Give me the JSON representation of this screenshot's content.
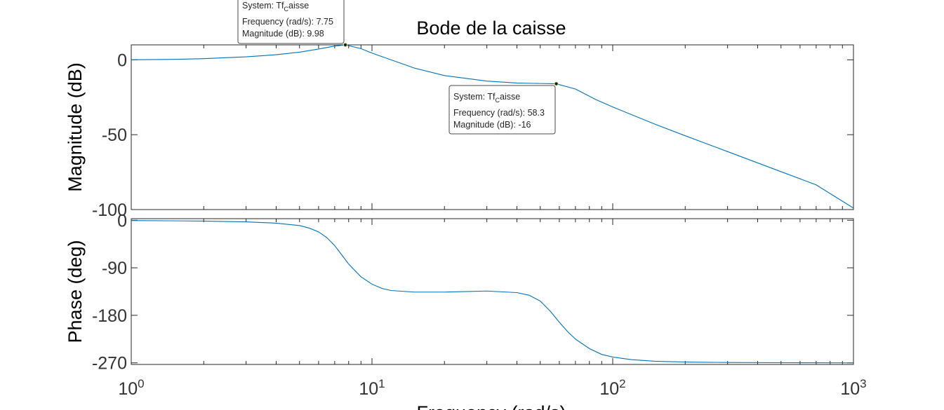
{
  "chart_data": {
    "type": "line",
    "title": "Bode de la caisse",
    "xlabel": "Frequency  (rad/s)",
    "x_scale": "log",
    "x_range": [
      1,
      1000
    ],
    "x_ticks": [
      {
        "base": "10",
        "exp": "0"
      },
      {
        "base": "10",
        "exp": "1"
      },
      {
        "base": "10",
        "exp": "2"
      },
      {
        "base": "10",
        "exp": "3"
      }
    ],
    "grid": false,
    "subplots": [
      {
        "id": "magnitude",
        "ylabel": "Magnitude (dB)",
        "ylim": [
          -100,
          10
        ],
        "yticks": [
          "0",
          "-50",
          "-100"
        ],
        "ytick_values": [
          0,
          -50,
          -100
        ],
        "series": [
          {
            "color": "#0072bd",
            "x": [
              1,
              1.5,
              2,
              3,
              4,
              5,
              6,
              7,
              7.75,
              9,
              10,
              12,
              15,
              20,
              30,
              40,
              50,
              58.3,
              70,
              85,
              100,
              150,
              200,
              300,
              500,
              700,
              1000
            ],
            "y": [
              0,
              0.3,
              0.8,
              2,
              3.4,
              5.1,
              7.2,
              9.2,
              9.98,
              7.5,
              4.5,
              0,
              -5.5,
              -10.5,
              -14.2,
              -15.5,
              -15.8,
              -16,
              -19.5,
              -26.5,
              -31.5,
              -43,
              -50.7,
              -61.3,
              -74.7,
              -83.5,
              -99
            ]
          }
        ]
      },
      {
        "id": "phase",
        "ylabel": "Phase (deg)",
        "ylim": [
          -273,
          3
        ],
        "yticks": [
          "0",
          "-90",
          "-180",
          "-270"
        ],
        "ytick_values": [
          0,
          -90,
          -180,
          -270
        ],
        "series": [
          {
            "color": "#0072bd",
            "x": [
              1,
              2,
              3,
              4,
              5,
              5.5,
              6,
              6.5,
              7,
              7.5,
              8,
              9,
              10,
              11,
              12,
              15,
              20,
              30,
              40,
              45,
              50,
              55,
              60,
              65,
              70,
              80,
              90,
              100,
              120,
              150,
              200,
              300,
              500,
              1000
            ],
            "y": [
              -0.5,
              -1.5,
              -3,
              -5.5,
              -10,
              -15,
              -22,
              -33,
              -48,
              -66,
              -83,
              -107,
              -121,
              -129,
              -133,
              -136,
              -136,
              -134,
              -137,
              -142,
              -153,
              -172,
              -193,
              -211,
              -225,
              -243,
              -254,
              -259,
              -264,
              -267,
              -268.5,
              -269.3,
              -269.7,
              -270
            ]
          }
        ]
      }
    ],
    "datatips": [
      {
        "subplot": "magnitude",
        "x": 7.75,
        "y": 9.98,
        "system_prefix": "System: Tf",
        "system_sub": "C",
        "system_suffix": "aisse",
        "line2": "Frequency (rad/s): 7.75",
        "line3": "Magnitude (dB): 9.98"
      },
      {
        "subplot": "magnitude",
        "x": 58.3,
        "y": -16,
        "system_prefix": "System: Tf",
        "system_sub": "C",
        "system_suffix": "aisse",
        "line2": "Frequency (rad/s): 58.3",
        "line3": "Magnitude (dB): -16"
      }
    ]
  }
}
